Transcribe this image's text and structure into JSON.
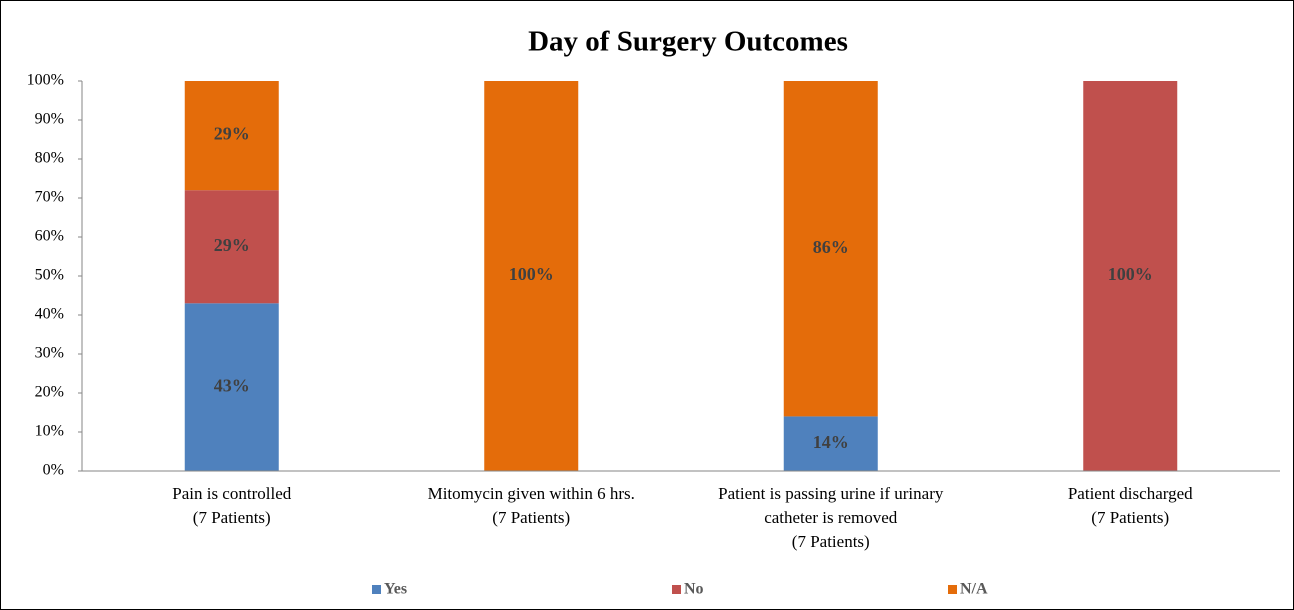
{
  "chart_data": {
    "type": "stacked_bar",
    "title": "Day of Surgery Outcomes",
    "categories": [
      [
        "Pain is controlled",
        "(7 Patients)"
      ],
      [
        "Mitomycin given within 6 hrs.",
        "(7 Patients)"
      ],
      [
        "Patient is passing urine if urinary",
        "catheter is removed",
        "(7 Patients)"
      ],
      [
        "Patient discharged",
        "(7 Patients)"
      ]
    ],
    "series": [
      {
        "name": "Yes",
        "color": "#4f81bd",
        "values": [
          43,
          0,
          14,
          0
        ],
        "value_labels": [
          "43%",
          null,
          "14%",
          null
        ]
      },
      {
        "name": "No",
        "color": "#c0504d",
        "values": [
          29,
          0,
          0,
          100
        ],
        "value_labels": [
          "29%",
          null,
          null,
          "100%"
        ]
      },
      {
        "name": "N/A",
        "color": "#e46c0a",
        "values": [
          29,
          100,
          86,
          0
        ],
        "value_labels": [
          "29%",
          "100%",
          "86%",
          null
        ]
      }
    ],
    "ylim": [
      0,
      100
    ],
    "yticks": [
      {
        "value": 0,
        "label": "0%"
      },
      {
        "value": 10,
        "label": "10%"
      },
      {
        "value": 20,
        "label": "20%"
      },
      {
        "value": 30,
        "label": "30%"
      },
      {
        "value": 40,
        "label": "40%"
      },
      {
        "value": 50,
        "label": "50%"
      },
      {
        "value": 60,
        "label": "60%"
      },
      {
        "value": 70,
        "label": "70%"
      },
      {
        "value": 80,
        "label": "80%"
      },
      {
        "value": 90,
        "label": "90%"
      },
      {
        "value": 100,
        "label": "100%"
      }
    ],
    "legend": "bottom",
    "grid": false
  }
}
